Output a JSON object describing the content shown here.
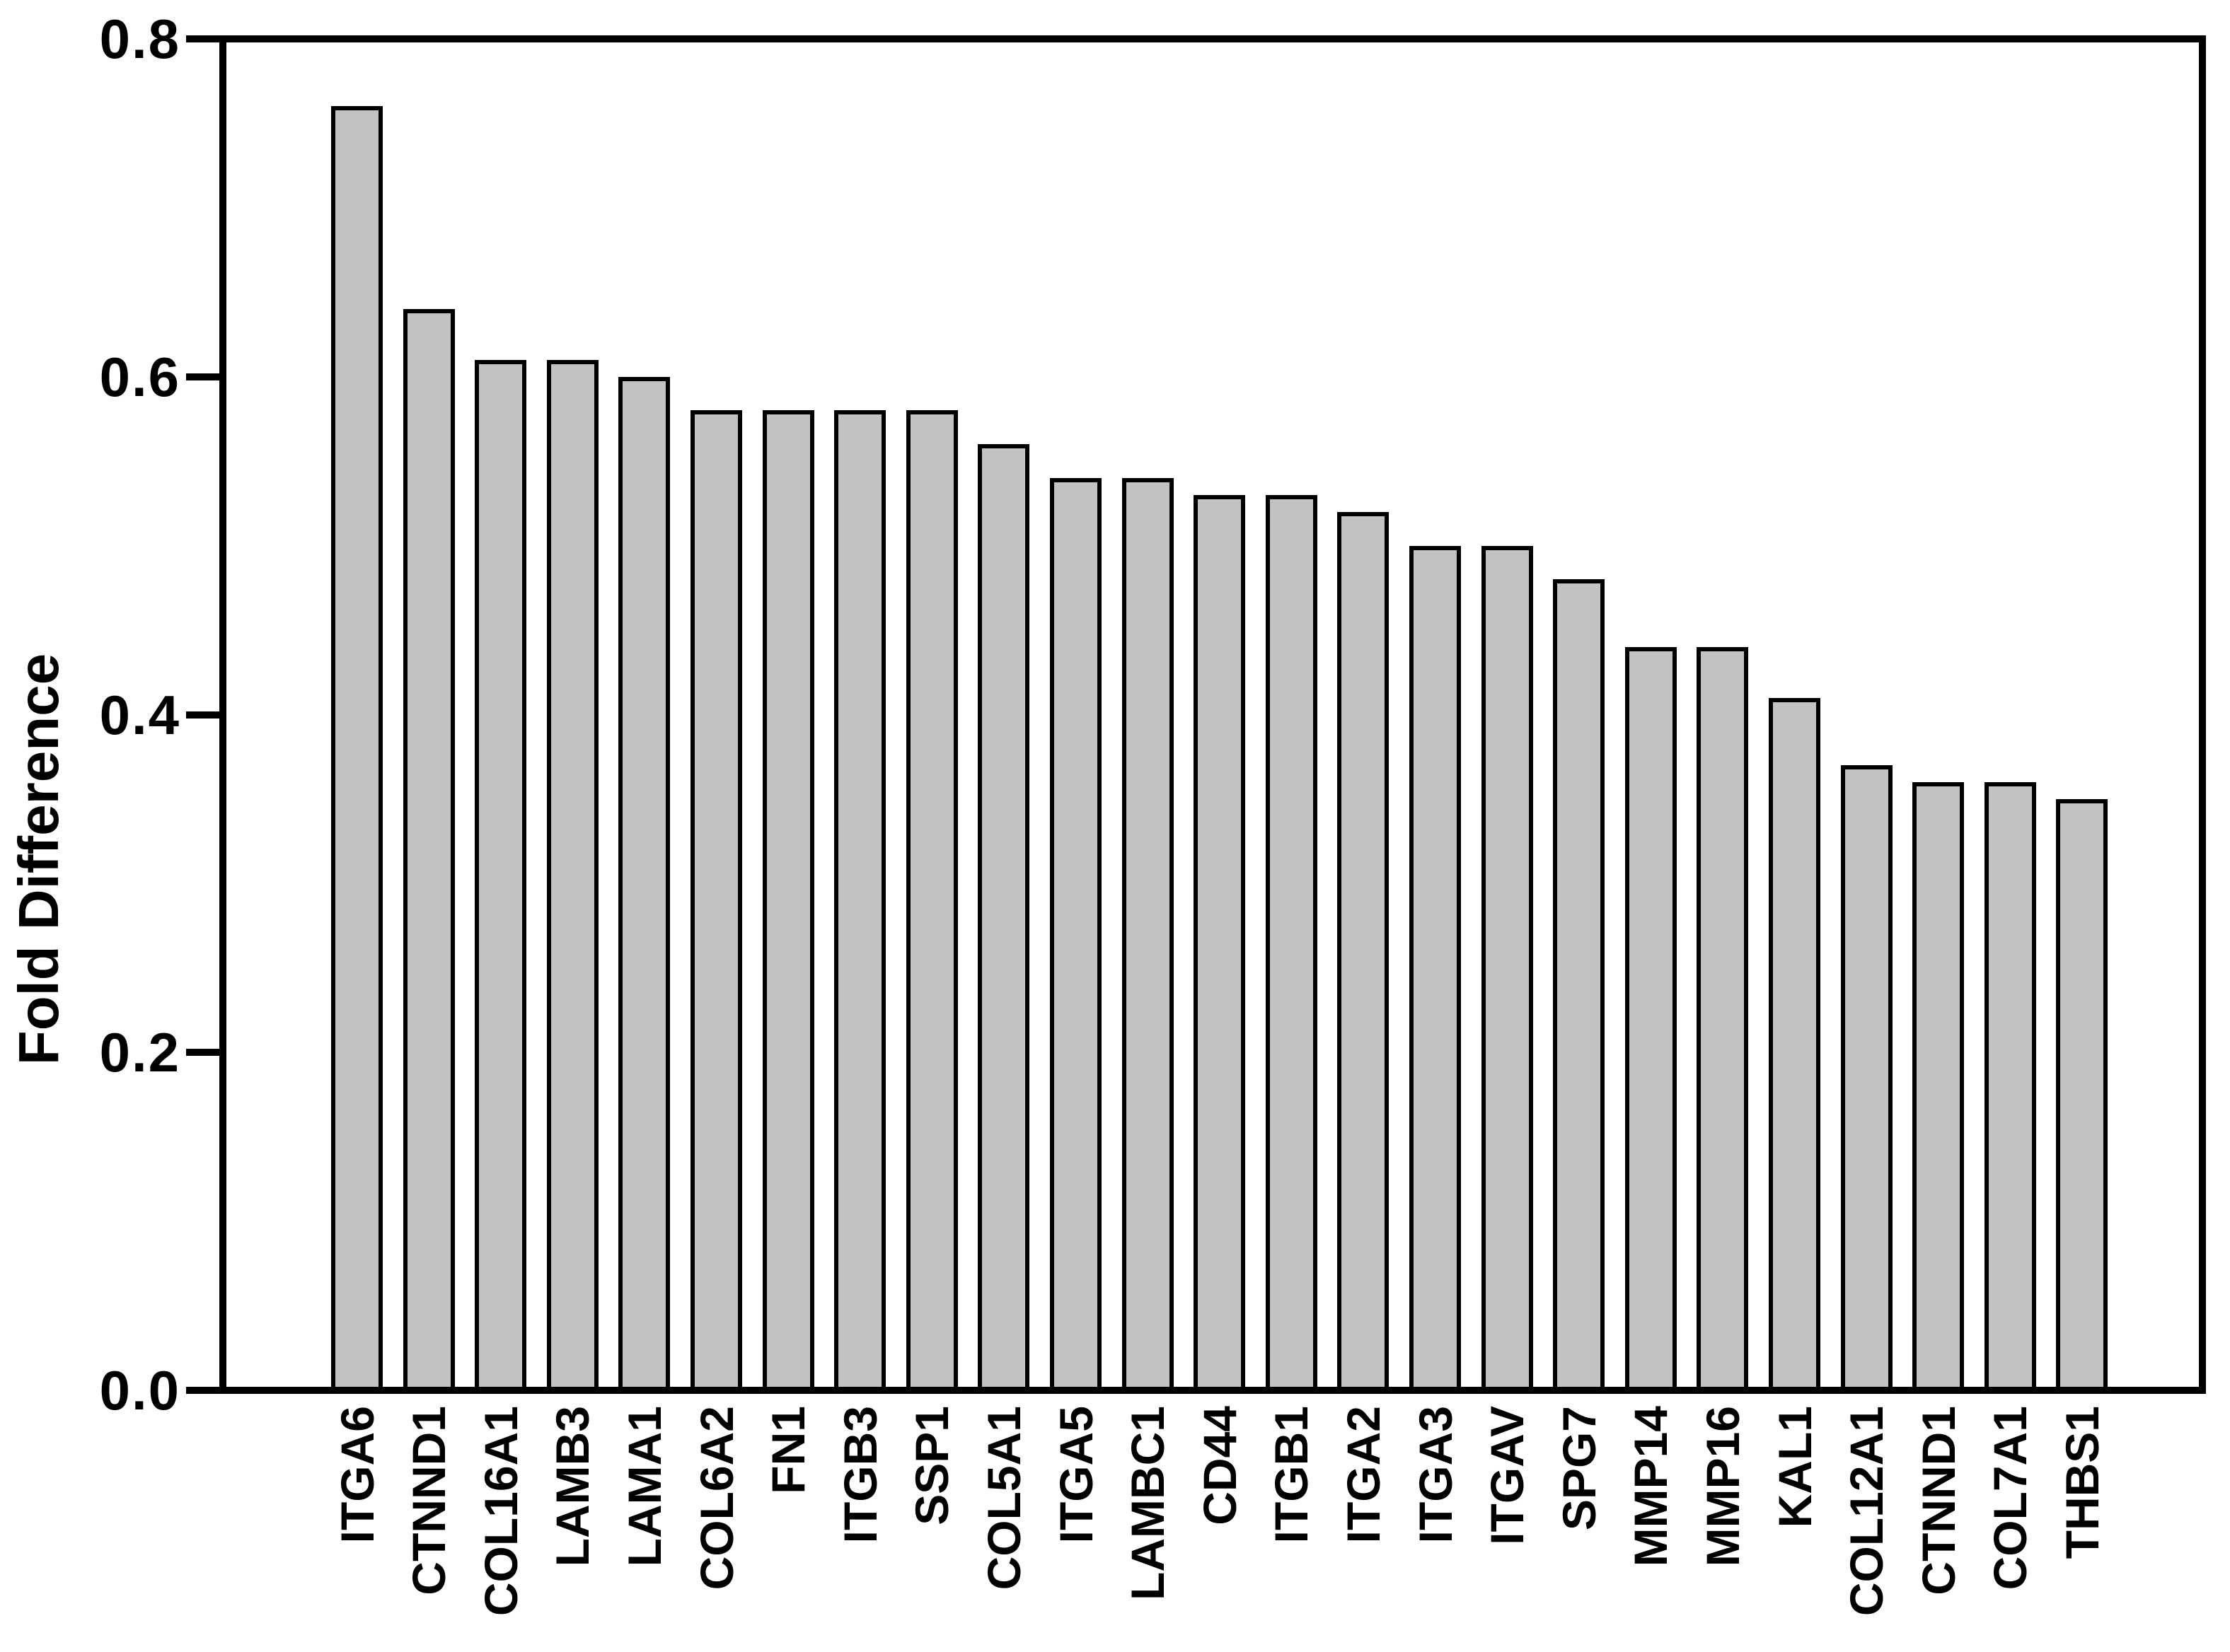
{
  "chart_data": {
    "type": "bar",
    "title": "",
    "xlabel": "",
    "ylabel": "Fold Difference",
    "ylim": [
      0.0,
      0.8
    ],
    "yticks": [
      0.0,
      0.2,
      0.4,
      0.6,
      0.8
    ],
    "ytick_labels": [
      "0.0",
      "0.2",
      "0.4",
      "0.6",
      "0.8"
    ],
    "grid": false,
    "legend": false,
    "frame": "full-box",
    "bar_fill_color": "#c2c2c2",
    "bar_border_color": "#000000",
    "background_color": "#ffffff",
    "categories": [
      "ITGA6",
      "CTNND1",
      "COL16A1",
      "LAMB3",
      "LAMA1",
      "COL6A2",
      "FN1",
      "ITGB3",
      "SSP1",
      "COL5A1",
      "ITGA5",
      "LAMBC1",
      "CD44",
      "ITGB1",
      "ITGA2",
      "ITGA3",
      "ITGAV",
      "SPG7",
      "MMP14",
      "MMP16",
      "KAL1",
      "COL12A1",
      "CTNND1",
      "COL7A1",
      "THBS1"
    ],
    "values": [
      0.76,
      0.64,
      0.61,
      0.61,
      0.6,
      0.58,
      0.58,
      0.58,
      0.58,
      0.56,
      0.54,
      0.54,
      0.53,
      0.53,
      0.52,
      0.5,
      0.5,
      0.48,
      0.44,
      0.44,
      0.41,
      0.37,
      0.36,
      0.36,
      0.35
    ]
  }
}
